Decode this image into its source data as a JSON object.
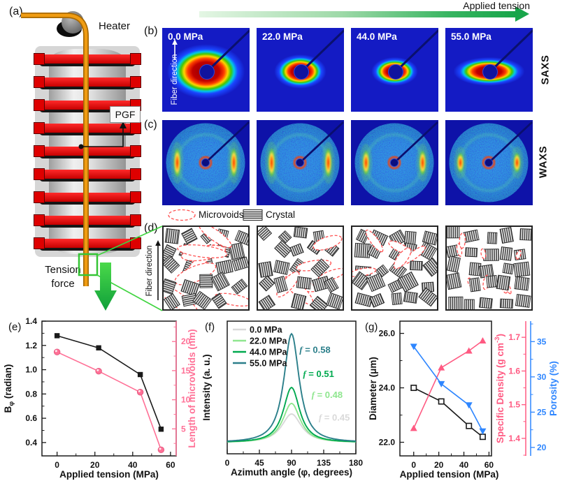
{
  "header": {
    "applied_tension": "Applied tension"
  },
  "panels": {
    "a": {
      "label": "(a)",
      "heater": "Heater",
      "pgf": "PGF",
      "tension_force": "Tension force"
    },
    "b": {
      "label": "(b)",
      "row_label": "SAXS",
      "fiber_direction": "Fiber direction",
      "pressures": [
        "0.0 MPa",
        "22.0 MPa",
        "44.0 MPa",
        "55.0 MPa"
      ]
    },
    "c": {
      "label": "(c)",
      "row_label": "WAXS"
    },
    "d": {
      "label": "(d)",
      "fiber_direction": "Fiber direction",
      "legend": {
        "microvoids": "Microvoids",
        "crystal": "Crystal"
      },
      "generator": [
        {
          "crystal_max_angle": 90,
          "void_count": 7,
          "void_rx": [
            26,
            40
          ],
          "void_ry": [
            7,
            11
          ],
          "void_axis": "tilted"
        },
        {
          "crystal_max_angle": 60,
          "void_count": 6,
          "void_rx": [
            20,
            30
          ],
          "void_ry": [
            6,
            9
          ],
          "void_axis": "tilted"
        },
        {
          "crystal_max_angle": 40,
          "void_count": 5,
          "void_rx": [
            13,
            20
          ],
          "void_ry": [
            5,
            7
          ],
          "void_axis": "tilted"
        },
        {
          "crystal_max_angle": 12,
          "void_count": 8,
          "void_rx": [
            6,
            11
          ],
          "void_ry": [
            2.5,
            4.5
          ],
          "void_axis": "vertical"
        }
      ]
    },
    "e": {
      "label": "(e)"
    },
    "f": {
      "label": "(f)"
    },
    "g": {
      "label": "(g)"
    }
  },
  "chart_data": [
    {
      "id": "e",
      "type": "line",
      "xlabel": "Applied tension (MPa)",
      "ylabel_left": {
        "pre": "B",
        "sub": "φ",
        "post": " (radian)"
      },
      "ylabel_right": {
        "pre": "Length of microvoids (nm)"
      },
      "x": [
        0,
        22,
        44,
        55
      ],
      "xlim": [
        -8,
        63
      ],
      "xticks": [
        0,
        20,
        40,
        60
      ],
      "xminor": [
        10,
        30,
        50
      ],
      "left": {
        "lim": [
          0.29,
          1.4
        ],
        "ticks": [
          0.4,
          0.6,
          0.8,
          1.0,
          1.2,
          1.4
        ],
        "minor": [
          0.5,
          0.7,
          0.9,
          1.1,
          1.3
        ],
        "fmt": 1,
        "color": "#1a1a1a"
      },
      "right": {
        "lim": [
          0.36,
          23.5
        ],
        "ticks": [
          5,
          10,
          15,
          20
        ],
        "minor": [
          2.5,
          7.5,
          12.5,
          17.5,
          22.5
        ],
        "fmt": 0,
        "color": "#ff7096"
      },
      "series": [
        {
          "name": "Bφ",
          "axis": "left",
          "marker": "square",
          "color": "#1a1a1a",
          "values": [
            1.28,
            1.18,
            0.96,
            0.51
          ]
        },
        {
          "name": "Length of microvoids",
          "axis": "right",
          "marker": "ball",
          "color": "#ff7096",
          "values": [
            18.2,
            14.9,
            11.3,
            1.4
          ]
        }
      ]
    },
    {
      "id": "f",
      "type": "line",
      "xlabel": "Azimuth angle (φ, degrees)",
      "ylabel": "Intensity (a. u.)",
      "xlim": [
        0,
        180
      ],
      "xticks": [
        0,
        45,
        90,
        135,
        180
      ],
      "xminor": [
        22.5,
        67.5,
        112.5,
        157.5
      ],
      "base": 0.085,
      "center": 90,
      "curves": [
        {
          "name": "0.0 MPa",
          "color": "#d9d9d9",
          "amp": 0.215,
          "width": 18,
          "f_label": {
            "text": "f = 0.45",
            "x": 128,
            "y": 0.25
          }
        },
        {
          "name": "22.0 MPa",
          "color": "#8fe68f",
          "amp": 0.295,
          "width": 16,
          "f_label": {
            "text": "f = 0.48",
            "x": 118,
            "y": 0.42
          }
        },
        {
          "name": "44.0 MPa",
          "color": "#00a94f",
          "amp": 0.415,
          "width": 15,
          "f_label": {
            "text": "f = 0.51",
            "x": 106,
            "y": 0.58
          }
        },
        {
          "name": "55.0 MPa",
          "color": "#2b7f8a",
          "amp": 0.82,
          "width": 14,
          "f_label": {
            "text": "f = 0.58",
            "x": 101,
            "y": 0.76
          }
        }
      ]
    },
    {
      "id": "g",
      "type": "line",
      "xlabel": "Applied tension (MPa)",
      "ylabel_left": {
        "pre": "Diameter (μm)"
      },
      "ylabel_right1": {
        "pre": "Specific Density (g cm",
        "sup": "-3",
        "post": ")"
      },
      "ylabel_right2": {
        "pre": "Porosity (%)"
      },
      "x": [
        0,
        22,
        44,
        55
      ],
      "xlim": [
        -11,
        62
      ],
      "xticks": [
        0,
        20,
        40,
        60
      ],
      "xminor": [
        10,
        30,
        50
      ],
      "left": {
        "lim": [
          21.5,
          26.45
        ],
        "ticks": [
          22,
          24,
          26
        ],
        "minor": [
          23,
          25
        ],
        "fmt": 1,
        "color": "#1a1a1a"
      },
      "right1": {
        "lim": [
          1.348,
          1.748
        ],
        "ticks": [
          1.4,
          1.5,
          1.6,
          1.7
        ],
        "minor": [
          1.35,
          1.45,
          1.55,
          1.65
        ],
        "fmt": 1,
        "color": "#ff5a82"
      },
      "right2": {
        "lim": [
          18.8,
          37.9
        ],
        "ticks": [
          20,
          25,
          30,
          35
        ],
        "minor": [
          22.5,
          27.5,
          32.5,
          37.5
        ],
        "fmt": 0,
        "color": "#2e86ff"
      },
      "series": [
        {
          "name": "Diameter",
          "axis": "left",
          "marker": "square-open",
          "color": "#1a1a1a",
          "values": [
            24.0,
            23.5,
            22.6,
            22.2
          ]
        },
        {
          "name": "Specific Density",
          "axis": "right1",
          "marker": "triangle-up",
          "color": "#ff5a82",
          "values": [
            1.43,
            1.61,
            1.66,
            1.69
          ]
        },
        {
          "name": "Porosity",
          "axis": "right2",
          "marker": "triangle-down",
          "color": "#2e86ff",
          "values": [
            34.3,
            29.0,
            26.0,
            22.3
          ]
        }
      ]
    }
  ],
  "colors": {
    "saxs_bg": "#141bc4",
    "waxs_bg": "#0e12a8",
    "accent_green": "#18a54a",
    "pink": "#ff7096",
    "pink2": "#ff5a82",
    "blue": "#2e86ff",
    "teal": "#2b7f8a"
  }
}
